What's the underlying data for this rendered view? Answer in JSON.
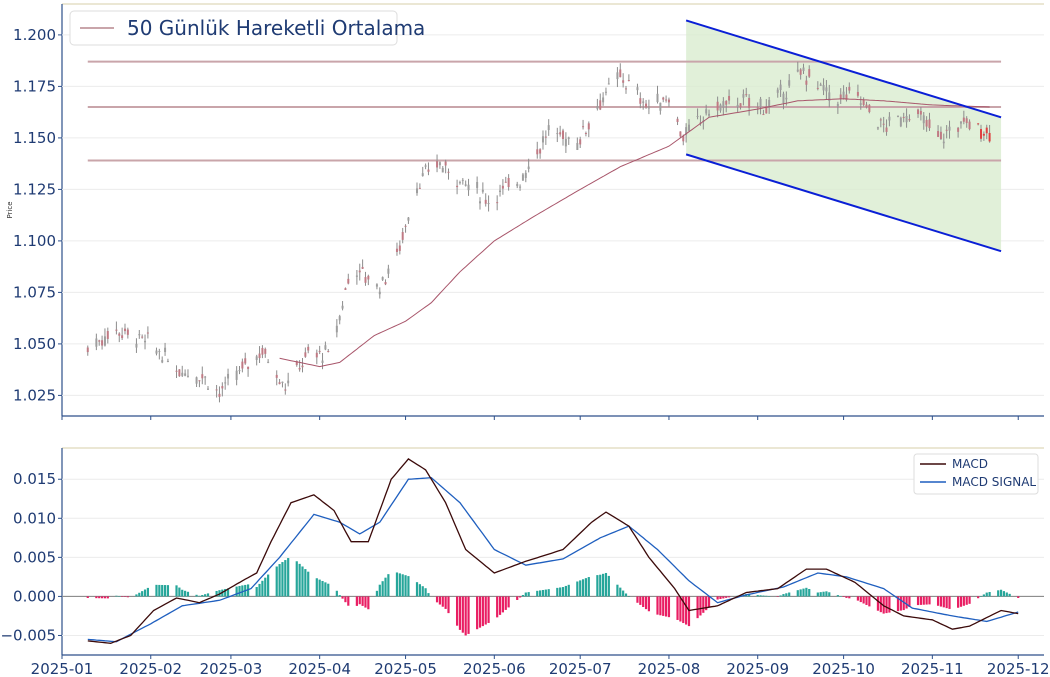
{
  "chart_data": [
    {
      "type": "candlestick",
      "ylabel": "Price",
      "ylim": [
        1.015,
        1.215
      ],
      "yticks": [
        "1.025",
        "1.050",
        "1.075",
        "1.100",
        "1.125",
        "1.150",
        "1.175",
        "1.200"
      ],
      "xlim": [
        "2025-01-01",
        "2025-12-10"
      ],
      "grid": true,
      "legend": {
        "position": "top-left",
        "entries": [
          "50 Günlük Hareketli Ortalama"
        ]
      },
      "horizontal_levels": [
        1.187,
        1.165,
        1.139
      ],
      "channel": {
        "upper": [
          [
            "2025-08-07",
            1.207
          ],
          [
            "2025-11-25",
            1.16
          ]
        ],
        "lower": [
          [
            "2025-08-07",
            1.142
          ],
          [
            "2025-11-25",
            1.095
          ]
        ]
      },
      "close_anchors": [
        [
          "2025-01-10",
          1.048
        ],
        [
          "2025-01-20",
          1.057
        ],
        [
          "2025-02-01",
          1.05
        ],
        [
          "2025-02-10",
          1.038
        ],
        [
          "2025-02-20",
          1.034
        ],
        [
          "2025-02-25",
          1.026
        ],
        [
          "2025-03-05",
          1.038
        ],
        [
          "2025-03-12",
          1.047
        ],
        [
          "2025-03-20",
          1.03
        ],
        [
          "2025-03-28",
          1.045
        ],
        [
          "2025-04-05",
          1.045
        ],
        [
          "2025-04-12",
          1.088
        ],
        [
          "2025-04-22",
          1.078
        ],
        [
          "2025-04-28",
          1.093
        ],
        [
          "2025-05-05",
          1.127
        ],
        [
          "2025-05-12",
          1.138
        ],
        [
          "2025-05-20",
          1.13
        ],
        [
          "2025-05-30",
          1.12
        ],
        [
          "2025-06-10",
          1.13
        ],
        [
          "2025-06-20",
          1.153
        ],
        [
          "2025-06-30",
          1.148
        ],
        [
          "2025-07-08",
          1.168
        ],
        [
          "2025-07-15",
          1.18
        ],
        [
          "2025-07-25",
          1.165
        ],
        [
          "2025-08-01",
          1.17
        ],
        [
          "2025-08-06",
          1.15
        ],
        [
          "2025-08-15",
          1.163
        ],
        [
          "2025-08-25",
          1.168
        ],
        [
          "2025-09-05",
          1.165
        ],
        [
          "2025-09-17",
          1.182
        ],
        [
          "2025-09-28",
          1.168
        ],
        [
          "2025-10-05",
          1.172
        ],
        [
          "2025-10-15",
          1.155
        ],
        [
          "2025-10-25",
          1.163
        ],
        [
          "2025-11-04",
          1.15
        ],
        [
          "2025-11-12",
          1.158
        ],
        [
          "2025-11-21",
          1.153
        ]
      ],
      "ma50_anchors": [
        [
          "2025-03-18",
          1.043
        ],
        [
          "2025-04-01",
          1.039
        ],
        [
          "2025-04-08",
          1.041
        ],
        [
          "2025-04-20",
          1.054
        ],
        [
          "2025-05-01",
          1.061
        ],
        [
          "2025-05-10",
          1.07
        ],
        [
          "2025-05-20",
          1.085
        ],
        [
          "2025-06-01",
          1.1
        ],
        [
          "2025-06-15",
          1.112
        ],
        [
          "2025-07-01",
          1.125
        ],
        [
          "2025-07-15",
          1.136
        ],
        [
          "2025-08-01",
          1.146
        ],
        [
          "2025-08-15",
          1.16
        ],
        [
          "2025-09-01",
          1.164
        ],
        [
          "2025-09-15",
          1.168
        ],
        [
          "2025-10-01",
          1.169
        ],
        [
          "2025-10-15",
          1.168
        ],
        [
          "2025-11-01",
          1.166
        ],
        [
          "2025-11-21",
          1.165
        ]
      ]
    },
    {
      "type": "line+bar",
      "ylim": [
        -0.0075,
        0.019
      ],
      "yticks": [
        "−0.005",
        "0.000",
        "0.005",
        "0.010",
        "0.015"
      ],
      "xticks": [
        "2025-01",
        "2025-02",
        "2025-03",
        "2025-04",
        "2025-05",
        "2025-06",
        "2025-07",
        "2025-08",
        "2025-09",
        "2025-10",
        "2025-11",
        "2025-12"
      ],
      "grid": true,
      "legend": {
        "position": "top-right",
        "entries": [
          "MACD",
          "MACD SIGNAL"
        ]
      },
      "series": [
        {
          "name": "MACD",
          "color": "#3b0a0a",
          "anchors": [
            [
              "2025-01-10",
              -0.0057
            ],
            [
              "2025-01-18",
              -0.006
            ],
            [
              "2025-01-25",
              -0.005
            ],
            [
              "2025-02-02",
              -0.0018
            ],
            [
              "2025-02-10",
              -0.0002
            ],
            [
              "2025-02-18",
              -0.0008
            ],
            [
              "2025-02-25",
              0.0003
            ],
            [
              "2025-03-05",
              0.002
            ],
            [
              "2025-03-10",
              0.003
            ],
            [
              "2025-03-15",
              0.007
            ],
            [
              "2025-03-22",
              0.012
            ],
            [
              "2025-03-30",
              0.013
            ],
            [
              "2025-04-06",
              0.011
            ],
            [
              "2025-04-12",
              0.007
            ],
            [
              "2025-04-18",
              0.007
            ],
            [
              "2025-04-26",
              0.015
            ],
            [
              "2025-05-02",
              0.0176
            ],
            [
              "2025-05-08",
              0.0162
            ],
            [
              "2025-05-15",
              0.012
            ],
            [
              "2025-05-22",
              0.006
            ],
            [
              "2025-06-01",
              0.003
            ],
            [
              "2025-06-12",
              0.0045
            ],
            [
              "2025-06-25",
              0.006
            ],
            [
              "2025-07-05",
              0.0095
            ],
            [
              "2025-07-10",
              0.0108
            ],
            [
              "2025-07-18",
              0.009
            ],
            [
              "2025-07-25",
              0.005
            ],
            [
              "2025-08-03",
              0.001
            ],
            [
              "2025-08-08",
              -0.0018
            ],
            [
              "2025-08-18",
              -0.0012
            ],
            [
              "2025-08-28",
              0.0005
            ],
            [
              "2025-09-08",
              0.001
            ],
            [
              "2025-09-18",
              0.0035
            ],
            [
              "2025-09-25",
              0.0035
            ],
            [
              "2025-10-05",
              0.0018
            ],
            [
              "2025-10-15",
              -0.0012
            ],
            [
              "2025-10-22",
              -0.0025
            ],
            [
              "2025-11-01",
              -0.003
            ],
            [
              "2025-11-08",
              -0.0042
            ],
            [
              "2025-11-14",
              -0.0038
            ],
            [
              "2025-11-25",
              -0.0018
            ],
            [
              "2025-12-01",
              -0.0022
            ]
          ]
        },
        {
          "name": "MACD SIGNAL",
          "color": "#1f5fbf",
          "anchors": [
            [
              "2025-01-10",
              -0.0055
            ],
            [
              "2025-01-20",
              -0.0058
            ],
            [
              "2025-02-01",
              -0.0035
            ],
            [
              "2025-02-12",
              -0.0012
            ],
            [
              "2025-02-25",
              -0.0005
            ],
            [
              "2025-03-08",
              0.001
            ],
            [
              "2025-03-18",
              0.005
            ],
            [
              "2025-03-30",
              0.0105
            ],
            [
              "2025-04-08",
              0.0095
            ],
            [
              "2025-04-15",
              0.008
            ],
            [
              "2025-04-22",
              0.0095
            ],
            [
              "2025-05-02",
              0.015
            ],
            [
              "2025-05-10",
              0.0152
            ],
            [
              "2025-05-20",
              0.012
            ],
            [
              "2025-06-01",
              0.006
            ],
            [
              "2025-06-12",
              0.004
            ],
            [
              "2025-06-25",
              0.0048
            ],
            [
              "2025-07-08",
              0.0075
            ],
            [
              "2025-07-18",
              0.009
            ],
            [
              "2025-07-28",
              0.006
            ],
            [
              "2025-08-08",
              0.002
            ],
            [
              "2025-08-18",
              -0.0008
            ],
            [
              "2025-08-28",
              0.0002
            ],
            [
              "2025-09-10",
              0.0012
            ],
            [
              "2025-09-22",
              0.003
            ],
            [
              "2025-10-02",
              0.0025
            ],
            [
              "2025-10-15",
              0.001
            ],
            [
              "2025-10-25",
              -0.0015
            ],
            [
              "2025-11-08",
              -0.0025
            ],
            [
              "2025-11-20",
              -0.0032
            ],
            [
              "2025-12-01",
              -0.002
            ]
          ]
        }
      ],
      "histogram": {
        "positive_color": "#26a69a",
        "negative_color": "#e91e63"
      }
    }
  ]
}
